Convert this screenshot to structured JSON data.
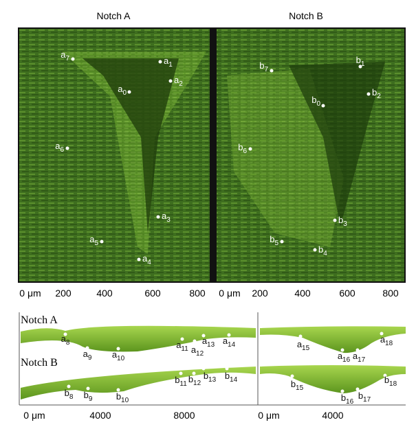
{
  "panel_a": {
    "title": "Notch A",
    "points": [
      {
        "base": "a",
        "sub": "0"
      },
      {
        "base": "a",
        "sub": "1"
      },
      {
        "base": "a",
        "sub": "2"
      },
      {
        "base": "a",
        "sub": "3"
      },
      {
        "base": "a",
        "sub": "4"
      },
      {
        "base": "a",
        "sub": "5"
      },
      {
        "base": "a",
        "sub": "6"
      },
      {
        "base": "a",
        "sub": "7"
      }
    ],
    "axis": [
      "0 μm",
      "200",
      "400",
      "600",
      "800"
    ]
  },
  "panel_b": {
    "title": "Notch B",
    "points": [
      {
        "base": "b",
        "sub": "0"
      },
      {
        "base": "b",
        "sub": "1"
      },
      {
        "base": "b",
        "sub": "2"
      },
      {
        "base": "b",
        "sub": "3"
      },
      {
        "base": "b",
        "sub": "4"
      },
      {
        "base": "b",
        "sub": "5"
      },
      {
        "base": "b",
        "sub": "6"
      },
      {
        "base": "b",
        "sub": "7"
      }
    ],
    "axis": [
      "0 μm",
      "200",
      "400",
      "600",
      "800"
    ]
  },
  "profiles": {
    "strip_a": {
      "title": "Notch A",
      "points": [
        {
          "base": "a",
          "sub": "8"
        },
        {
          "base": "a",
          "sub": "9"
        },
        {
          "base": "a",
          "sub": "10"
        },
        {
          "base": "a",
          "sub": "11"
        },
        {
          "base": "a",
          "sub": "12"
        },
        {
          "base": "a",
          "sub": "13"
        },
        {
          "base": "a",
          "sub": "14"
        },
        {
          "base": "a",
          "sub": "15"
        },
        {
          "base": "a",
          "sub": "16"
        },
        {
          "base": "a",
          "sub": "17"
        },
        {
          "base": "a",
          "sub": "18"
        }
      ]
    },
    "strip_b": {
      "title": "Notch B",
      "points": [
        {
          "base": "b",
          "sub": "8"
        },
        {
          "base": "b",
          "sub": "9"
        },
        {
          "base": "b",
          "sub": "10"
        },
        {
          "base": "b",
          "sub": "11"
        },
        {
          "base": "b",
          "sub": "12"
        },
        {
          "base": "b",
          "sub": "13"
        },
        {
          "base": "b",
          "sub": "14"
        },
        {
          "base": "b",
          "sub": "15"
        },
        {
          "base": "b",
          "sub": "16"
        },
        {
          "base": "b",
          "sub": "17"
        },
        {
          "base": "b",
          "sub": "18"
        }
      ]
    },
    "axis_left": [
      "0 μm",
      "4000",
      "8000"
    ],
    "axis_right": [
      "0 μm",
      "4000"
    ]
  }
}
